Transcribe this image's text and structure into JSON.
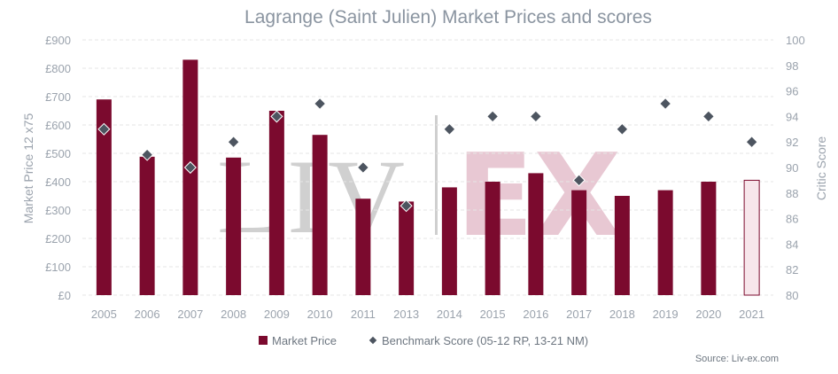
{
  "chart_data": {
    "type": "bar",
    "title": "Lagrange (Saint Julien) Market Prices and scores",
    "categories": [
      "2005",
      "2006",
      "2007",
      "2008",
      "2009",
      "2010",
      "2011",
      "2013",
      "2014",
      "2015",
      "2016",
      "2017",
      "2018",
      "2019",
      "2020",
      "2021"
    ],
    "series": [
      {
        "name": "Market Price",
        "type": "bar",
        "axis": "left",
        "values": [
          690,
          488,
          830,
          485,
          650,
          565,
          340,
          330,
          380,
          400,
          430,
          370,
          350,
          370,
          400,
          405
        ],
        "color": "#7b0a2e",
        "highlight_last": true,
        "highlight_fill": "#f7e6eb"
      },
      {
        "name": "Benchmark Score (05-12 RP, 13-21 NM)",
        "type": "scatter",
        "axis": "right",
        "values": [
          93,
          91,
          90,
          92,
          94,
          95,
          90,
          87,
          93,
          94,
          94,
          89,
          93,
          95,
          94,
          92
        ],
        "color": "#4d5560"
      }
    ],
    "y_left": {
      "label": "Market Price 12 x75",
      "min": 0,
      "max": 900,
      "step": 100,
      "prefix": "£"
    },
    "y_right": {
      "label": "Critic Score",
      "min": 80,
      "max": 100,
      "step": 2
    },
    "grid": true,
    "legend_position": "bottom"
  },
  "watermark": {
    "left": "LIV",
    "right": "EX"
  },
  "source": "Source: Liv-ex.com"
}
